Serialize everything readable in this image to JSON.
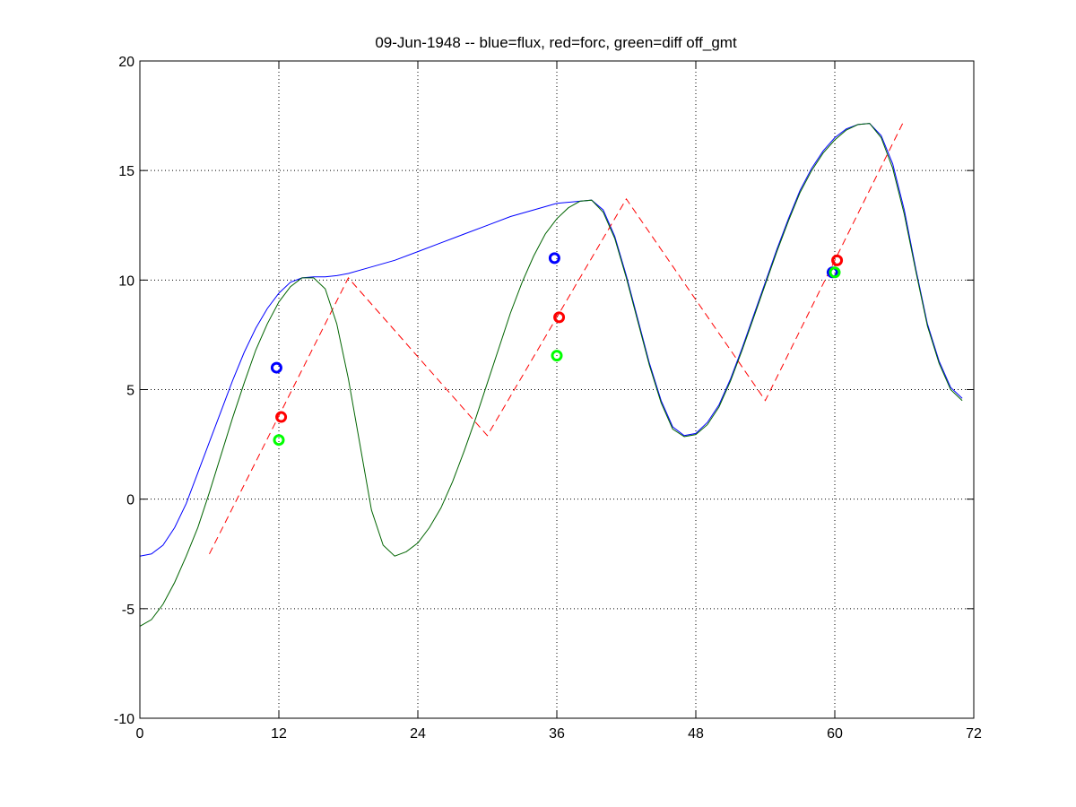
{
  "chart_data": {
    "type": "line",
    "title": "09-Jun-1948 -- blue=flux, red=forc, green=diff off_gmt",
    "xlabel": "",
    "ylabel": "",
    "xlim": [
      0,
      72
    ],
    "ylim": [
      -10,
      20
    ],
    "xticks": [
      0,
      12,
      24,
      36,
      48,
      60,
      72
    ],
    "yticks": [
      -10,
      -5,
      0,
      5,
      10,
      15,
      20
    ],
    "grid": true,
    "series": [
      {
        "color": "#0000ff",
        "style": "solid",
        "x": [
          0,
          1,
          2,
          3,
          4,
          5,
          6,
          7,
          8,
          9,
          10,
          11,
          12,
          13,
          14,
          15,
          16,
          17,
          18,
          20,
          22,
          24,
          26,
          28,
          30,
          32,
          34,
          36,
          38,
          39,
          40,
          41,
          42,
          43,
          44,
          45,
          46,
          47,
          48,
          49,
          50,
          51,
          52,
          53,
          54,
          55,
          56,
          57,
          58,
          59,
          60,
          61,
          62,
          63,
          64,
          65,
          66,
          67,
          68,
          69,
          70,
          71
        ],
        "y": [
          -2.6,
          -2.5,
          -2.1,
          -1.3,
          -0.2,
          1.2,
          2.6,
          4.0,
          5.4,
          6.7,
          7.8,
          8.7,
          9.4,
          9.9,
          10.1,
          10.15,
          10.15,
          10.2,
          10.3,
          10.6,
          10.9,
          11.3,
          11.7,
          12.1,
          12.5,
          12.9,
          13.2,
          13.5,
          13.6,
          13.65,
          13.2,
          12.0,
          10.2,
          8.2,
          6.2,
          4.5,
          3.3,
          2.9,
          3.0,
          3.5,
          4.3,
          5.5,
          6.9,
          8.4,
          9.9,
          11.4,
          12.8,
          14.1,
          15.1,
          15.9,
          16.5,
          16.9,
          17.1,
          17.15,
          16.6,
          15.3,
          13.2,
          10.5,
          8.0,
          6.3,
          5.1,
          4.6
        ]
      },
      {
        "color": "#ff0000",
        "style": "dashed",
        "x": [
          6,
          18,
          30,
          42,
          54,
          66
        ],
        "y": [
          -2.5,
          10.1,
          2.9,
          13.7,
          4.5,
          17.3
        ]
      },
      {
        "color": "#006400",
        "style": "solid",
        "x": [
          0,
          1,
          2,
          3,
          4,
          5,
          6,
          7,
          8,
          9,
          10,
          11,
          12,
          13,
          14,
          15,
          16,
          17,
          18,
          19,
          20,
          21,
          22,
          23,
          24,
          25,
          26,
          27,
          28,
          29,
          30,
          31,
          32,
          33,
          34,
          35,
          36,
          37,
          38,
          39,
          40,
          41,
          42,
          43,
          44,
          45,
          46,
          47,
          48,
          49,
          50,
          51,
          52,
          53,
          54,
          55,
          56,
          57,
          58,
          59,
          60,
          61,
          62,
          63,
          64,
          65,
          66,
          67,
          68,
          69,
          70,
          71
        ],
        "y": [
          -5.8,
          -5.5,
          -4.8,
          -3.8,
          -2.6,
          -1.3,
          0.3,
          2.0,
          3.7,
          5.3,
          6.8,
          8.0,
          9.0,
          9.7,
          10.1,
          10.1,
          9.6,
          8.0,
          5.5,
          2.5,
          -0.5,
          -2.1,
          -2.6,
          -2.4,
          -2.0,
          -1.3,
          -0.4,
          0.8,
          2.2,
          3.7,
          5.3,
          6.9,
          8.5,
          9.9,
          11.1,
          12.1,
          12.8,
          13.3,
          13.6,
          13.65,
          13.1,
          11.9,
          10.1,
          8.1,
          6.1,
          4.4,
          3.2,
          2.85,
          2.95,
          3.4,
          4.2,
          5.4,
          6.8,
          8.3,
          9.8,
          11.3,
          12.7,
          14.0,
          15.0,
          15.8,
          16.4,
          16.85,
          17.1,
          17.15,
          16.5,
          15.1,
          13.0,
          10.4,
          7.9,
          6.2,
          5.0,
          4.5
        ]
      }
    ],
    "markers": [
      {
        "x": 11.8,
        "y": 6.0,
        "color": "#0000ff"
      },
      {
        "x": 12.2,
        "y": 3.75,
        "color": "#ff0000"
      },
      {
        "x": 12.0,
        "y": 2.7,
        "color": "#00ff00"
      },
      {
        "x": 35.8,
        "y": 11.0,
        "color": "#0000ff"
      },
      {
        "x": 36.2,
        "y": 8.3,
        "color": "#ff0000"
      },
      {
        "x": 36.0,
        "y": 6.55,
        "color": "#00ff00"
      },
      {
        "x": 59.8,
        "y": 10.35,
        "color": "#0000ff"
      },
      {
        "x": 60.2,
        "y": 10.9,
        "color": "#ff0000"
      },
      {
        "x": 60.0,
        "y": 10.35,
        "color": "#00ff00"
      }
    ]
  }
}
